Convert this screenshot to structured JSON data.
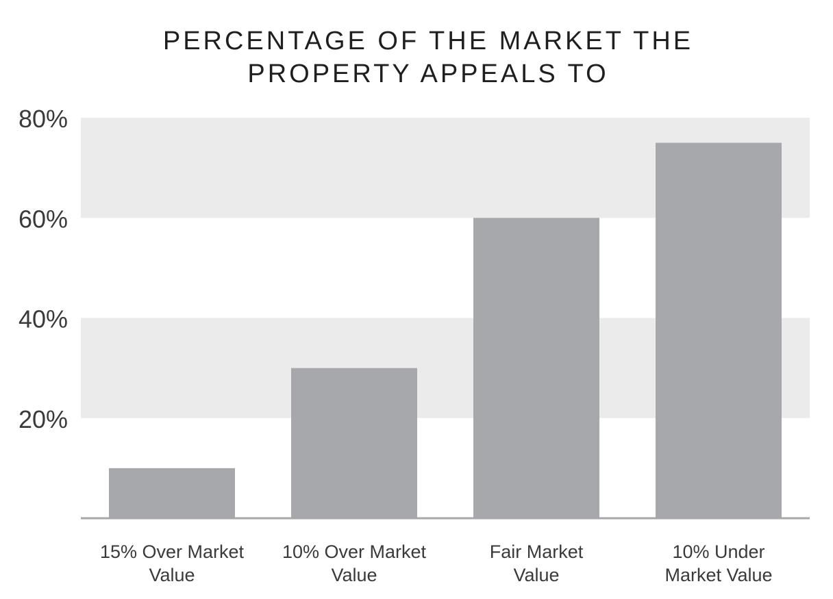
{
  "chart_data": {
    "type": "bar",
    "title_lines": [
      "PERCENTAGE OF THE MARKET THE",
      "PROPERTY APPEALS TO"
    ],
    "categories": [
      [
        "15% Over Market",
        "Value"
      ],
      [
        "10% Over Market",
        "Value"
      ],
      [
        "Fair Market",
        "Value"
      ],
      [
        "10% Under",
        "Market Value"
      ]
    ],
    "values": [
      10,
      30,
      60,
      75
    ],
    "y_ticks": [
      {
        "value": 20,
        "label": "20%"
      },
      {
        "value": 40,
        "label": "40%"
      },
      {
        "value": 60,
        "label": "60%"
      },
      {
        "value": 80,
        "label": "80%"
      }
    ],
    "ylim": [
      0,
      80
    ],
    "xlabel": "",
    "ylabel": "",
    "grid": "alternating bands",
    "legend": "none",
    "colors": {
      "bar": "#a7a8ab",
      "band": "#ebebec",
      "axis": "#a7a8ab",
      "text": "#3a3a3a"
    }
  }
}
